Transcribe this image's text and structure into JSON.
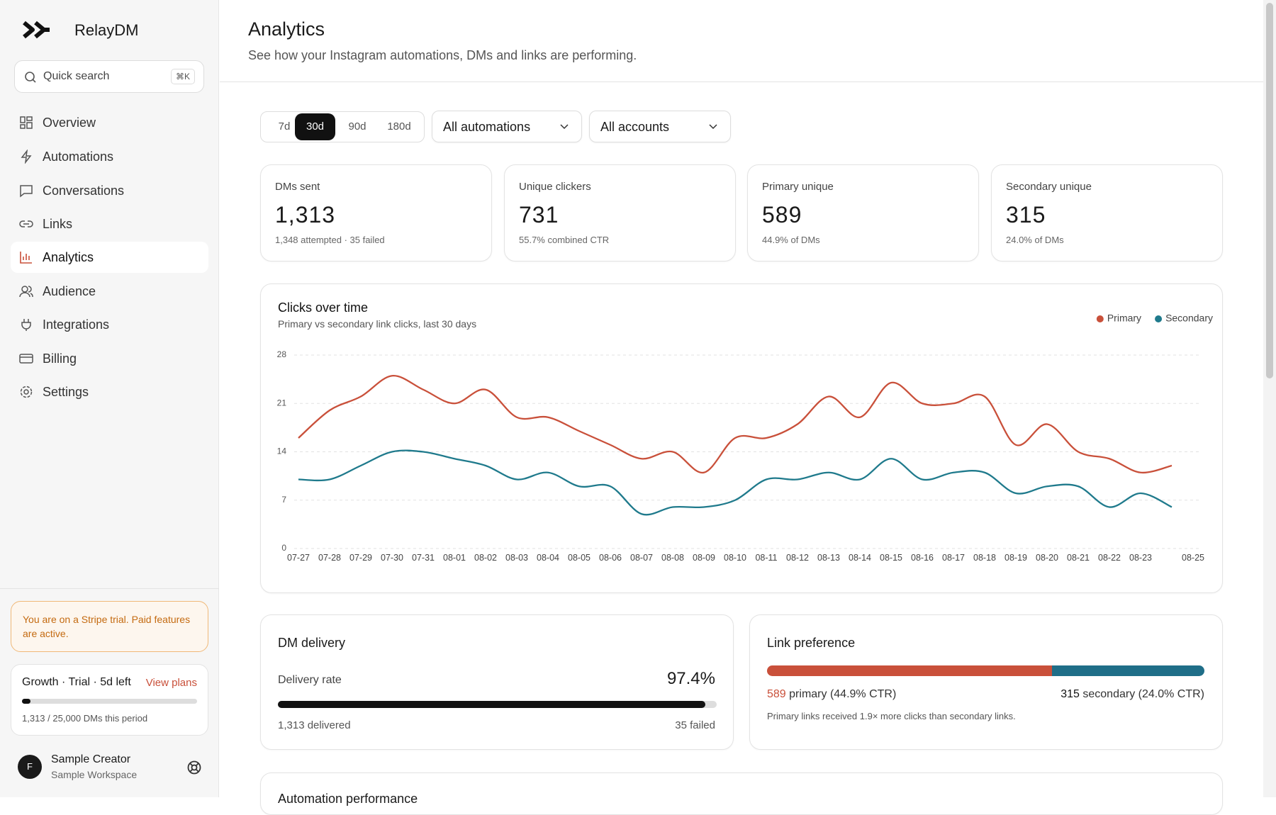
{
  "brand": "RelayDM",
  "search": {
    "placeholder": "Quick search",
    "shortcut": "⌘K"
  },
  "nav": [
    "Overview",
    "Automations",
    "Conversations",
    "Links",
    "Analytics",
    "Audience",
    "Integrations",
    "Billing",
    "Settings"
  ],
  "trial_notice": "You are on a Stripe trial. Paid features are active.",
  "plan": {
    "title": "Growth · Trial · 5d left",
    "link": "View plans",
    "usage": "1,313 / 25,000 DMs this period"
  },
  "user": {
    "avatar": "F",
    "name": "Sample Creator",
    "workspace": "Sample Workspace"
  },
  "header": {
    "title": "Analytics",
    "subtitle": "See how your Instagram automations, DMs and links are performing."
  },
  "filters": {
    "ranges": [
      "7d",
      "30d",
      "90d",
      "180d"
    ],
    "automation": "All automations",
    "account": "All accounts"
  },
  "stats": [
    {
      "label": "DMs sent",
      "value": "1,313",
      "note": "1,348 attempted · 35 failed"
    },
    {
      "label": "Unique clickers",
      "value": "731",
      "note": "55.7% combined CTR"
    },
    {
      "label": "Primary unique",
      "value": "589",
      "note": "44.9% of DMs"
    },
    {
      "label": "Secondary unique",
      "value": "315",
      "note": "24.0% of DMs"
    }
  ],
  "chart_data": {
    "type": "line",
    "title": "Clicks over time",
    "subtitle": "Primary vs secondary link clicks, last 30 days",
    "categories": [
      "07-27",
      "07-28",
      "07-29",
      "07-30",
      "07-31",
      "08-01",
      "08-02",
      "08-03",
      "08-04",
      "08-05",
      "08-06",
      "08-07",
      "08-08",
      "08-09",
      "08-10",
      "08-11",
      "08-12",
      "08-13",
      "08-14",
      "08-15",
      "08-16",
      "08-17",
      "08-18",
      "08-19",
      "08-20",
      "08-21",
      "08-22",
      "08-23",
      null,
      "08-25"
    ],
    "series": [
      {
        "name": "Primary",
        "color": "#c9503a",
        "values": [
          16,
          20,
          22,
          25,
          23,
          21,
          23,
          19,
          19,
          17,
          15,
          13,
          14,
          11,
          16,
          16,
          18,
          22,
          19,
          24,
          21,
          21,
          22,
          15,
          18,
          14,
          13,
          11,
          12,
          null
        ]
      },
      {
        "name": "Secondary",
        "color": "#1f7a8c",
        "values": [
          10,
          10,
          12,
          14,
          14,
          13,
          12,
          10,
          11,
          9,
          9,
          5,
          6,
          6,
          7,
          10,
          10,
          11,
          10,
          13,
          10,
          11,
          11,
          8,
          9,
          9,
          6,
          8,
          6,
          null
        ]
      }
    ],
    "ylim": [
      0,
      28
    ],
    "yticks": [
      0,
      7,
      14,
      21,
      28
    ],
    "grid": true,
    "legend": "top-right"
  },
  "delivery": {
    "title": "DM delivery",
    "rate_label": "Delivery rate",
    "rate": {
      "value": 97.4,
      "label": "97.4%"
    },
    "delivered": "1,313 delivered",
    "failed": "35 failed"
  },
  "link_preference": {
    "title": "Link preference",
    "primary_count": 589,
    "primary_text": "primary (44.9% CTR)",
    "secondary_count": 315,
    "secondary_text": "secondary (24.0% CTR)",
    "note": "Primary links received 1.9× more clicks than secondary links."
  },
  "next_section": "Automation performance"
}
